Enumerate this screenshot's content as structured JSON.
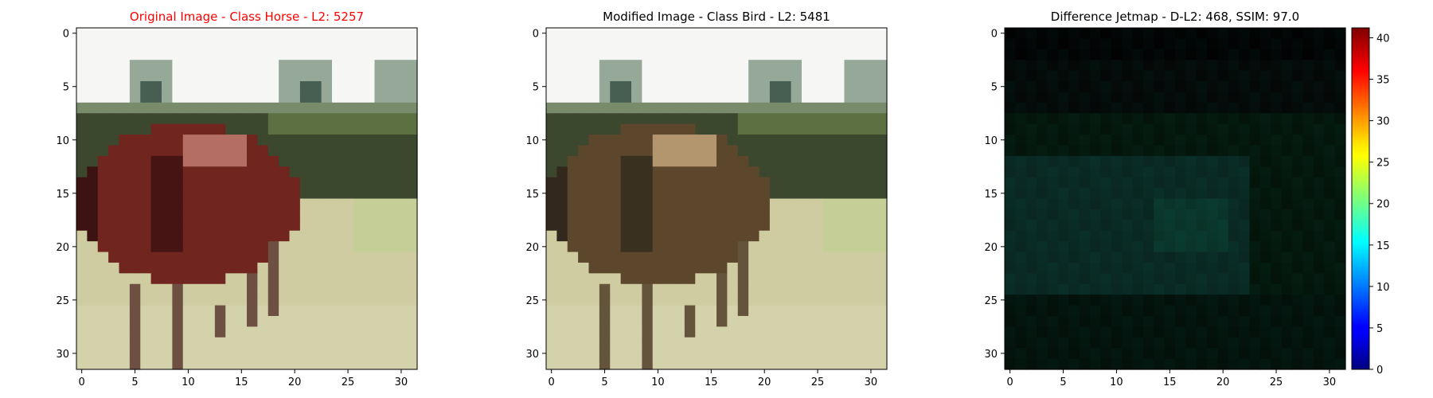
{
  "figure": {
    "panels": [
      {
        "id": "original",
        "title": "Original Image - Class Horse - L2: 5257",
        "title_color": "#ff0000",
        "variant": "original"
      },
      {
        "id": "modified",
        "title": "Modified Image - Class Bird - L2: 5481",
        "title_color": "#000000",
        "variant": "modified"
      },
      {
        "id": "difference",
        "title": "Difference Jetmap - D-L2: 468, SSIM: 97.0",
        "title_color": "#000000",
        "variant": "difference"
      }
    ],
    "axes": {
      "xticks": [
        "0",
        "5",
        "10",
        "15",
        "20",
        "25",
        "30"
      ],
      "yticks": [
        "0",
        "5",
        "10",
        "15",
        "20",
        "25",
        "30"
      ],
      "tick_values": [
        0,
        5,
        10,
        15,
        20,
        25,
        30
      ],
      "range": [
        -0.5,
        31.5
      ]
    },
    "colorbar": {
      "colormap": "jet",
      "ticks": [
        "0",
        "5",
        "10",
        "15",
        "20",
        "25",
        "30",
        "35",
        "40"
      ],
      "tick_values": [
        0,
        5,
        10,
        15,
        20,
        25,
        30,
        35,
        40
      ],
      "range": [
        0,
        41.2
      ]
    }
  }
}
